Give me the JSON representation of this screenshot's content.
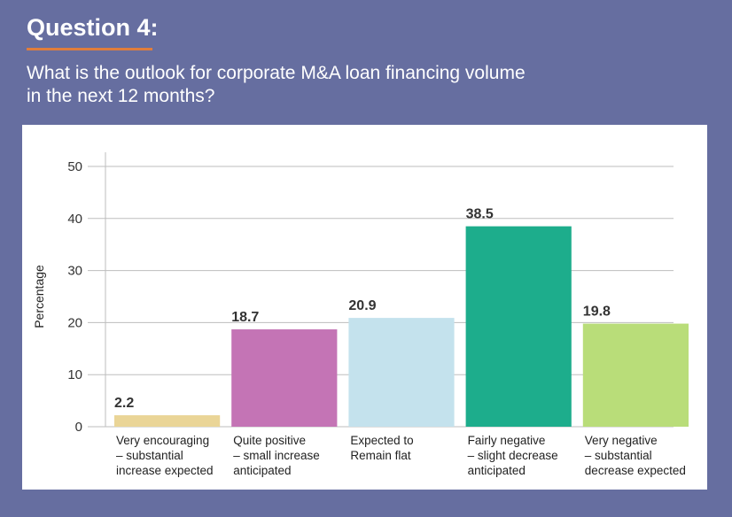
{
  "header": {
    "heading": "Question 4:",
    "question_lines": [
      "What is the outlook for corporate M&A loan financing volume",
      "in the next 12 months?"
    ],
    "rule_color": "#e07d3c",
    "background_color": "#666ea0"
  },
  "chart_data": {
    "type": "bar",
    "title": "",
    "ylabel": "Percentage",
    "xlabel": "",
    "ylim": [
      0,
      50
    ],
    "yticks": [
      0,
      10,
      20,
      30,
      40,
      50
    ],
    "grid": true,
    "categories": [
      [
        "Very encouraging",
        "– substantial",
        "increase expected"
      ],
      [
        "Quite positive",
        "– small increase",
        "anticipated"
      ],
      [
        "Expected to",
        "Remain flat"
      ],
      [
        "Fairly negative",
        "– slight decrease",
        "anticipated"
      ],
      [
        "Very negative",
        "– substantial",
        "decrease expected"
      ]
    ],
    "values": [
      2.2,
      18.7,
      20.9,
      38.5,
      19.8
    ],
    "value_labels": [
      "2.2",
      "18.7",
      "20.9",
      "38.5",
      "19.8"
    ],
    "colors": [
      "#ead597",
      "#c474b5",
      "#c4e2ed",
      "#1dad8c",
      "#b9dd79"
    ]
  }
}
